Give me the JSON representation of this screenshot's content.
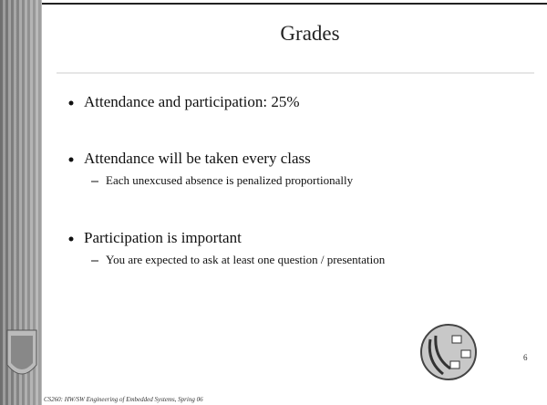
{
  "header": {
    "title": "Grades"
  },
  "bullets": [
    {
      "text": "Attendance and participation: 25%",
      "subs": []
    },
    {
      "text": "Attendance will be taken every class",
      "subs": [
        "Each unexcused absence is penalized proportionally"
      ]
    },
    {
      "text": "Participation is important",
      "subs": [
        "You are expected to ask at least one question / presentation"
      ]
    }
  ],
  "footer": {
    "text": "CS260: HW/SW Engineering of Embedded Systems, Spring 06",
    "page": "6"
  }
}
